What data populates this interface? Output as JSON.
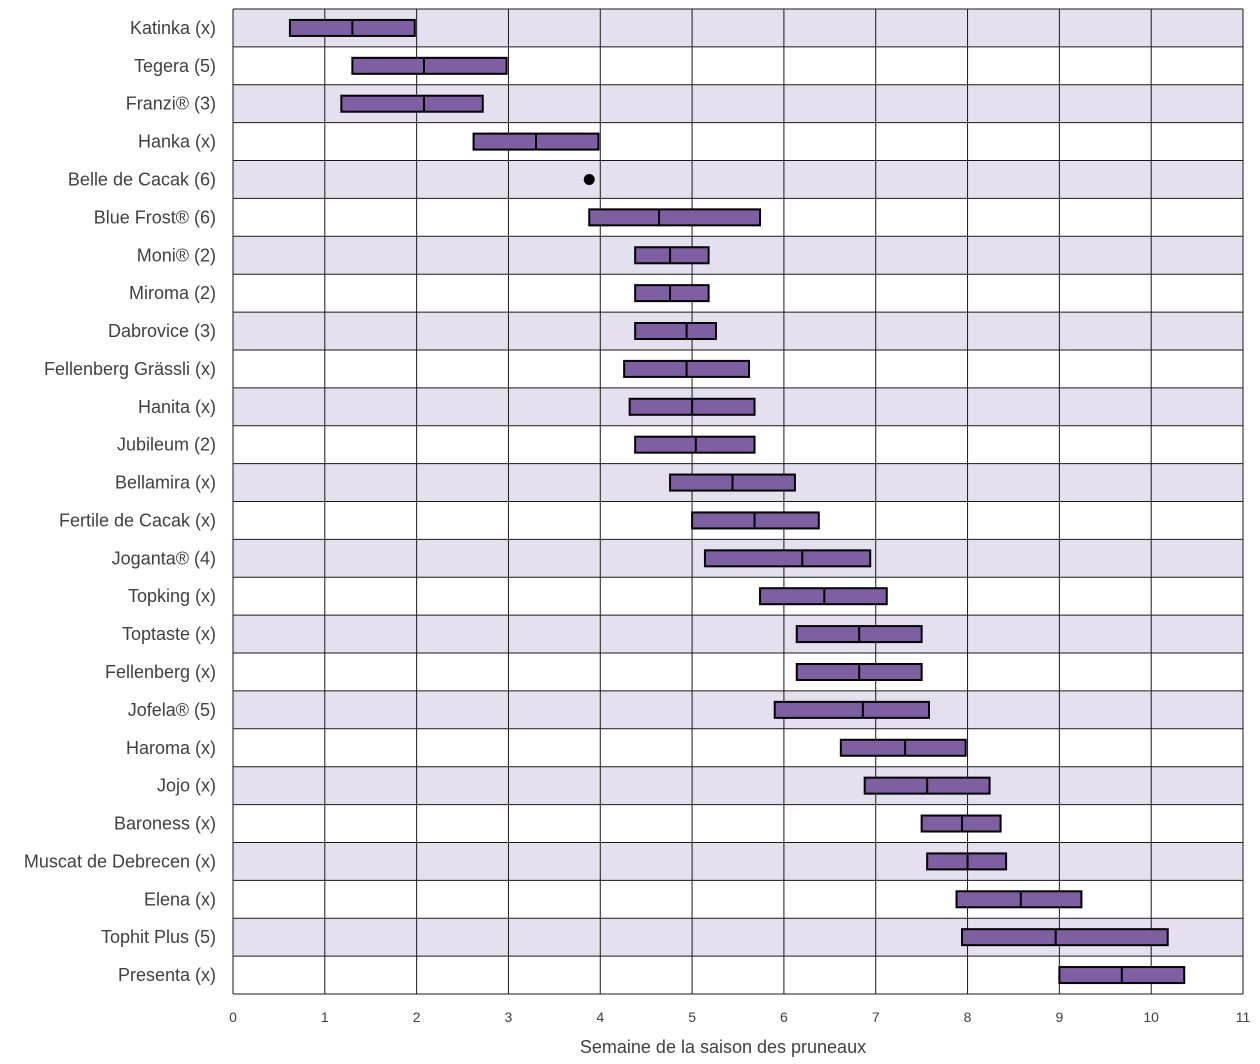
{
  "chart_data": {
    "type": "bar",
    "subtype": "floating-range",
    "xlabel": "Semaine de la saison des pruneaux",
    "ylabel": "",
    "xlim": [
      0,
      11
    ],
    "x_ticks": [
      "0",
      "1",
      "2",
      "3",
      "4",
      "5",
      "6",
      "7",
      "8",
      "9",
      "10",
      "11"
    ],
    "grid": true,
    "legend": "none",
    "colors": {
      "bar_fill": "#7e5fa2",
      "band_fill": "#e5e0ed",
      "marker": "#000000"
    },
    "categories": [
      "Katinka (x)",
      "Tegera (5)",
      "Franzi® (3)",
      "Hanka (x)",
      "Belle de Cacak (6)",
      "Blue Frost® (6)",
      "Moni® (2)",
      "Miroma (2)",
      "Dabrovice (3)",
      "Fellenberg Grässli (x)",
      "Hanita (x)",
      "Jubileum (2)",
      "Bellamira (x)",
      "Fertile de Cacak (x)",
      "Joganta® (4)",
      "Topking (x)",
      "Toptaste (x)",
      "Fellenberg (x)",
      "Jofela® (5)",
      "Haroma (x)",
      "Jojo (x)",
      "Baroness (x)",
      "Muscat de Debrecen (x)",
      "Elena (x)",
      "Tophit Plus (5)",
      "Presenta (x)"
    ],
    "series": [
      {
        "start": [
          0.62,
          1.3,
          1.18,
          2.62,
          3.88,
          3.88,
          4.38,
          4.38,
          4.38,
          4.26,
          4.32,
          4.38,
          4.76,
          5.0,
          5.14,
          5.74,
          6.14,
          6.14,
          5.9,
          6.62,
          6.88,
          7.5,
          7.56,
          7.88,
          7.94,
          9.0
        ],
        "median": [
          1.3,
          2.08,
          2.08,
          3.3,
          3.88,
          4.64,
          4.76,
          4.76,
          4.94,
          4.94,
          5.0,
          5.04,
          5.44,
          5.68,
          6.2,
          6.44,
          6.82,
          6.82,
          6.86,
          7.32,
          7.56,
          7.94,
          8.0,
          8.58,
          8.96,
          9.68
        ],
        "end": [
          1.98,
          2.98,
          2.72,
          3.98,
          3.88,
          5.74,
          5.18,
          5.18,
          5.26,
          5.62,
          5.68,
          5.68,
          6.12,
          6.38,
          6.94,
          7.12,
          7.5,
          7.5,
          7.58,
          7.98,
          8.24,
          8.36,
          8.42,
          9.24,
          10.18,
          10.36
        ]
      }
    ]
  }
}
